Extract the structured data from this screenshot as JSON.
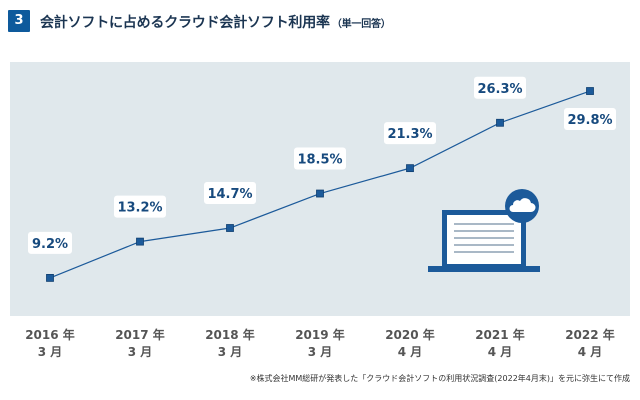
{
  "header": {
    "number": "3",
    "title": "会計ソフトに占めるクラウド会計ソフト利用率",
    "subtitle": "（単一回答）"
  },
  "chart_data": {
    "type": "line",
    "categories": [
      [
        "2016 年",
        "3 月"
      ],
      [
        "2017 年",
        "3 月"
      ],
      [
        "2018 年",
        "3 月"
      ],
      [
        "2019 年",
        "3 月"
      ],
      [
        "2020 年",
        "4 月"
      ],
      [
        "2021 年",
        "4 月"
      ],
      [
        "2022 年",
        "4 月"
      ]
    ],
    "values": [
      9.2,
      13.2,
      14.7,
      18.5,
      21.3,
      26.3,
      29.8
    ],
    "data_labels": [
      "9.2%",
      "13.2%",
      "14.7%",
      "18.5%",
      "21.3%",
      "26.3%",
      "29.8%"
    ],
    "ylim": [
      5,
      33
    ],
    "grid": false,
    "colors": {
      "line": "#1c5a9a",
      "marker_fill": "#1c5a9a",
      "label_text": "#174a7e",
      "plot_bg": "#e0e8ec",
      "tick_text": "#555555",
      "illustration": "#1c5a9a"
    }
  },
  "illustration": {
    "icon": "laptop-cloud-icon"
  },
  "footnote": "※株式会社MM総研が発表した「クラウド会計ソフトの利用状況調査(2022年4月末)」を元に弥生にて作成"
}
